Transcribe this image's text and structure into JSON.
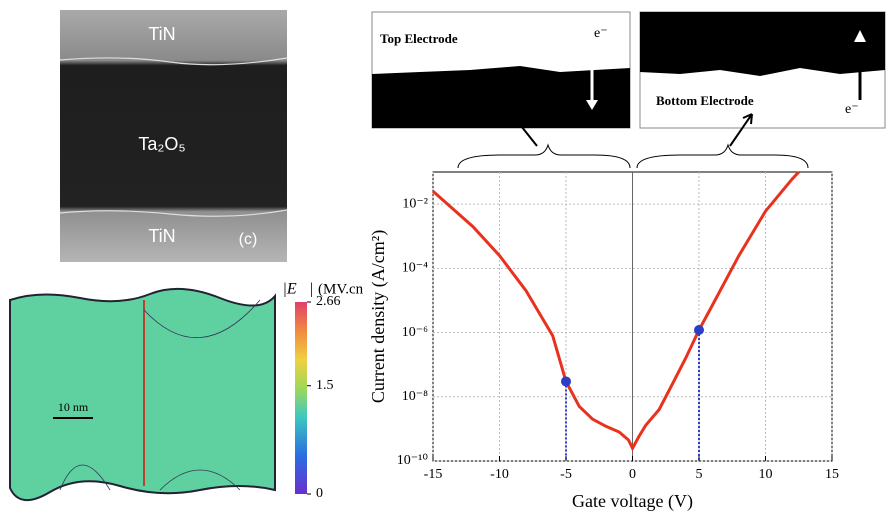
{
  "tem_image": {
    "top_layer": "TiN",
    "middle_layer": "Ta₂O₅",
    "bottom_layer": "TiN",
    "panel_label": "(c)"
  },
  "field_map": {
    "quantity": "|E⃗|",
    "unit": "(MV.cn",
    "scale_bar": "10 nm",
    "colorbar": {
      "lim": [
        0,
        2.66
      ],
      "ticks": [
        0,
        1.5,
        2.66
      ]
    }
  },
  "electrode_insets": {
    "top": {
      "label": "Top Electrode",
      "carrier": "e⁻"
    },
    "bottom": {
      "label": "Bottom Electrode",
      "carrier": "e⁻"
    }
  },
  "chart_data": {
    "type": "line",
    "x_label": "Gate voltage (V)",
    "y_label": "Current density (A/cm²)",
    "log_y": true,
    "grid": true,
    "xlim": [
      -15,
      15
    ],
    "xticks": [
      -15,
      -10,
      -5,
      0,
      5,
      10,
      15
    ],
    "ylim": [
      1e-10,
      0.1
    ],
    "yticks": [
      {
        "value": 1e-10,
        "label": "10⁻¹⁰"
      },
      {
        "value": 1e-08,
        "label": "10⁻⁸"
      },
      {
        "value": 1e-06,
        "label": "10⁻⁶"
      },
      {
        "value": 0.0001,
        "label": "10⁻⁴"
      },
      {
        "value": 0.01,
        "label": "10⁻²"
      }
    ],
    "series": [
      {
        "color": "#e8321e",
        "x": [
          -15,
          -12,
          -10,
          -8,
          -6,
          -5,
          -4,
          -3,
          -2,
          -1,
          -0.3,
          0,
          0.5,
          1,
          2,
          3,
          4,
          5,
          6,
          8,
          10,
          12,
          12.5
        ],
        "values": [
          0.025,
          0.002,
          0.00025,
          2e-05,
          8e-07,
          3e-08,
          5e-09,
          2e-09,
          1.2e-09,
          8e-10,
          4.5e-10,
          2.5e-10,
          6e-10,
          1.3e-09,
          4e-09,
          2.5e-08,
          1.6e-07,
          1.2e-06,
          7e-06,
          0.00025,
          0.006,
          0.06,
          0.1
        ]
      }
    ],
    "highlight": {
      "color": "#2a3fc4",
      "x": [
        -5,
        5
      ],
      "values": [
        3e-08,
        1.2e-06
      ]
    }
  }
}
